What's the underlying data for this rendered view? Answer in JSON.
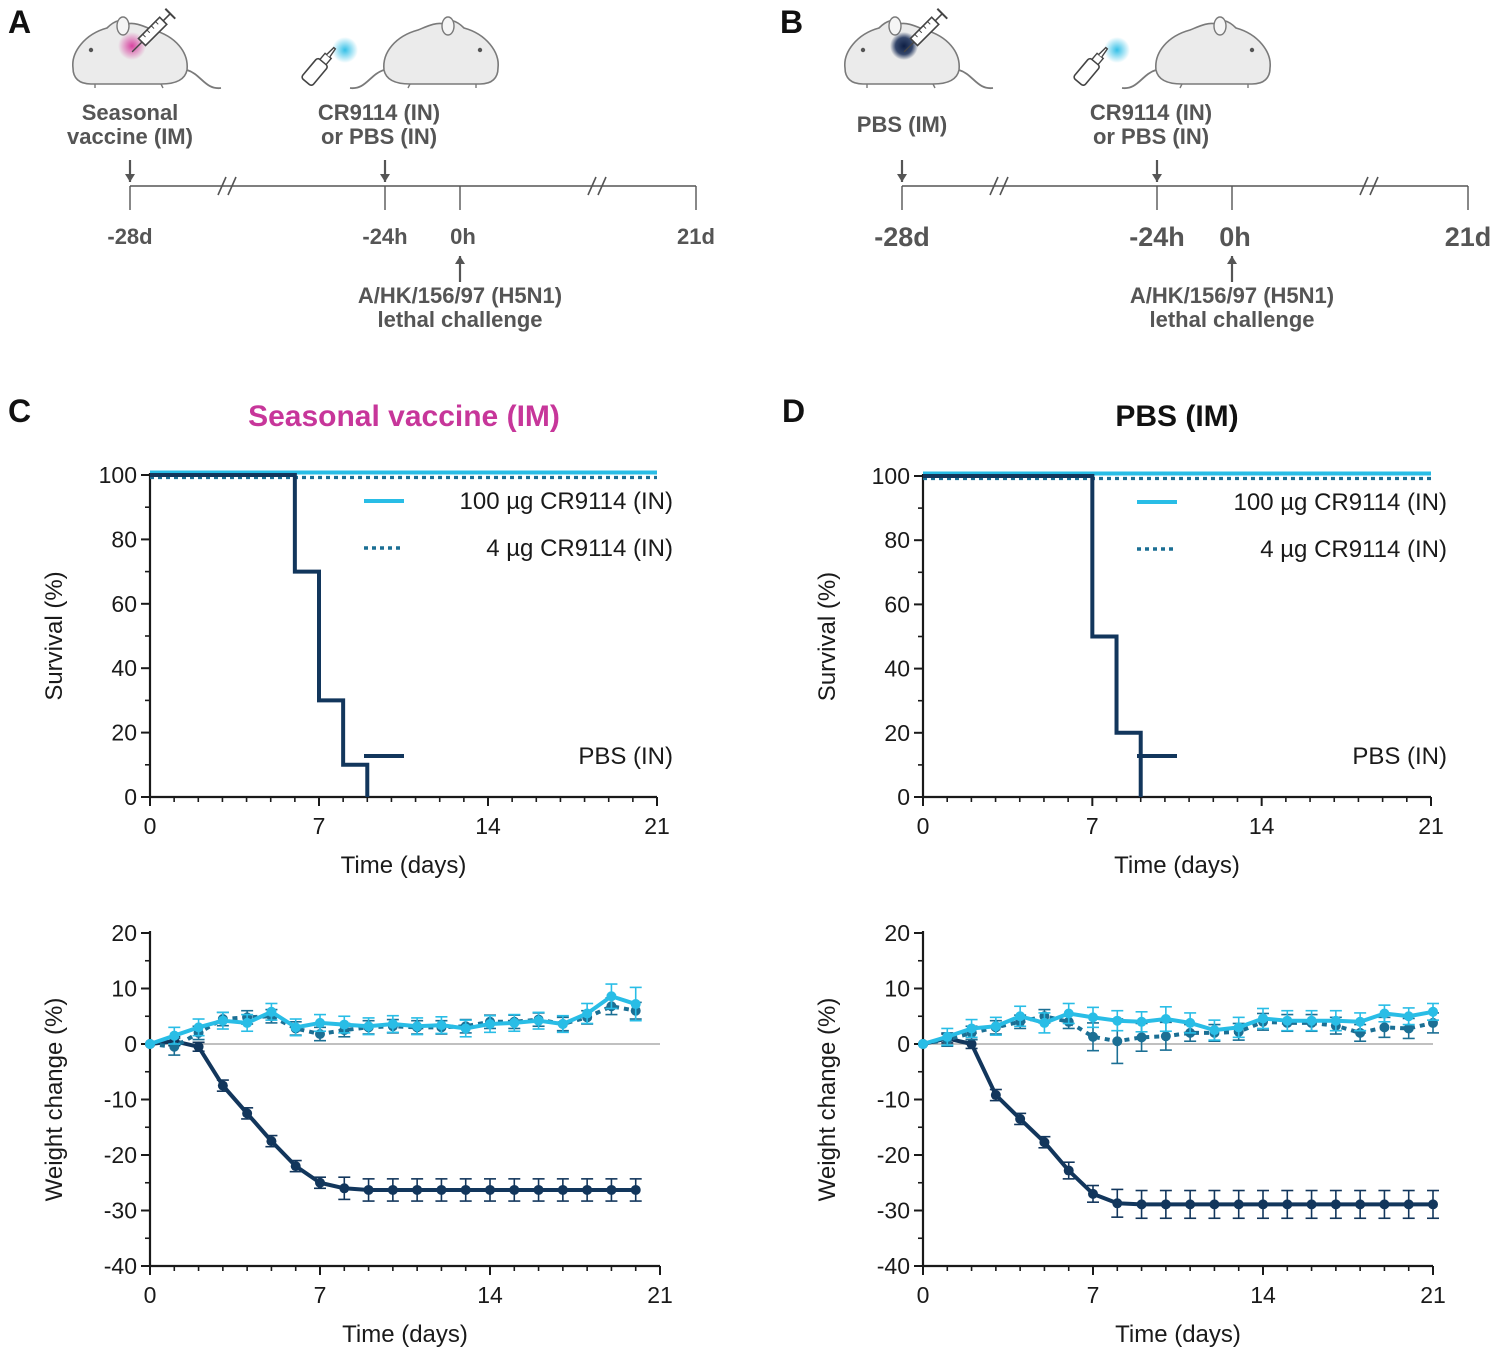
{
  "colors": {
    "light": "#29bde6",
    "mid": "#1b6f94",
    "dark": "#12365c",
    "title_magenta": "#c7369a",
    "title_black": "#111111",
    "timeline": "#555555"
  },
  "icons": [
    "mouse-icon",
    "syringe-icon",
    "nasal-spray-icon"
  ],
  "panels": [
    {
      "label": "A",
      "first_treatment": "Seasonal vaccine (IM)",
      "first_treatment_lines": [
        "Seasonal",
        "vaccine (IM)"
      ],
      "first_dot": "#d63a9c",
      "second_treatment_lines": [
        "CR9114 (IN)",
        "or PBS (IN)"
      ],
      "ticks": [
        "-28d",
        "-24h",
        "0h",
        "21d"
      ],
      "challenge_lines": [
        "A/HK/156/97 (H5N1)",
        "lethal challenge"
      ]
    },
    {
      "label": "B",
      "first_treatment": "PBS (IM)",
      "first_treatment_lines": [
        "PBS (IM)"
      ],
      "first_dot": "#152a55",
      "second_treatment_lines": [
        "CR9114 (IN)",
        "or PBS (IN)"
      ],
      "ticks": [
        "-28d",
        "-24h",
        "0h",
        "21d"
      ],
      "challenge_lines": [
        "A/HK/156/97 (H5N1)",
        "lethal challenge"
      ]
    }
  ],
  "chart_data": [
    {
      "panel": "C",
      "type": "line",
      "subtype": "survival-step",
      "title": "Seasonal vaccine (IM)",
      "xlabel": "Time (days)",
      "ylabel": "Survival (%)",
      "xlim": [
        0,
        21
      ],
      "ylim": [
        0,
        100
      ],
      "xticks": [
        0,
        7,
        14,
        21
      ],
      "yticks": [
        0,
        20,
        40,
        60,
        80,
        100
      ],
      "series": [
        {
          "name": "100 µg CR9114 (IN)",
          "style": "solid",
          "color": "light",
          "x": [
            0,
            21
          ],
          "y": [
            100,
            100
          ]
        },
        {
          "name": "4 µg CR9114 (IN)",
          "style": "dotted",
          "color": "mid",
          "x": [
            0,
            21
          ],
          "y": [
            100,
            100
          ]
        },
        {
          "name": "PBS (IN)",
          "style": "solid",
          "color": "dark",
          "x": [
            0,
            6,
            7,
            8,
            9
          ],
          "y": [
            100,
            70,
            30,
            10,
            0
          ]
        }
      ]
    },
    {
      "panel": "D",
      "type": "line",
      "subtype": "survival-step",
      "title": "PBS (IM)",
      "xlabel": "Time (days)",
      "ylabel": "Survival (%)",
      "xlim": [
        0,
        21
      ],
      "ylim": [
        0,
        100
      ],
      "xticks": [
        0,
        7,
        14,
        21
      ],
      "yticks": [
        0,
        20,
        40,
        60,
        80,
        100
      ],
      "series": [
        {
          "name": "100 µg CR9114 (IN)",
          "style": "solid",
          "color": "light",
          "x": [
            0,
            21
          ],
          "y": [
            100,
            100
          ]
        },
        {
          "name": "4 µg CR9114 (IN)",
          "style": "dotted",
          "color": "mid",
          "x": [
            0,
            21
          ],
          "y": [
            100,
            100
          ]
        },
        {
          "name": "PBS (IN)",
          "style": "solid",
          "color": "dark",
          "x": [
            0,
            7,
            8,
            9
          ],
          "y": [
            100,
            50,
            20,
            0
          ]
        }
      ]
    },
    {
      "panel": "C-weight",
      "type": "line",
      "subtype": "weight",
      "xlabel": "Time (days)",
      "ylabel": "Weight change (%)",
      "xlim": [
        0,
        21
      ],
      "ylim": [
        -40,
        20
      ],
      "xticks": [
        0,
        7,
        14,
        21
      ],
      "yticks": [
        -40,
        -30,
        -20,
        -10,
        0,
        10,
        20
      ],
      "x": [
        0,
        1,
        2,
        3,
        4,
        5,
        6,
        7,
        8,
        9,
        10,
        11,
        12,
        13,
        14,
        15,
        16,
        17,
        18,
        19,
        20,
        21
      ],
      "series": [
        {
          "name": "100 µg CR9114 (IN)",
          "style": "solid",
          "color": "light",
          "values": [
            0,
            1.5,
            3,
            4.2,
            3.8,
            5.8,
            3,
            3.8,
            3.5,
            3.2,
            3.6,
            3.2,
            3.4,
            2.8,
            3.6,
            3.8,
            4.2,
            3.6,
            5.5,
            8.6,
            7.2,
            null
          ],
          "errors": [
            0,
            1.5,
            1.5,
            1.5,
            1.5,
            1.5,
            1.5,
            1.5,
            1.5,
            1.5,
            1.5,
            1.5,
            1.5,
            1.5,
            1.5,
            1.5,
            1.5,
            1.5,
            1.8,
            2.2,
            3,
            0
          ]
        },
        {
          "name": "4 µg CR9114 (IN)",
          "style": "dotted",
          "color": "mid",
          "values": [
            0,
            -0.5,
            2,
            4.5,
            4.8,
            5,
            2.8,
            1.8,
            2.5,
            3,
            3.2,
            3,
            3,
            3.2,
            4,
            4,
            4.4,
            3.6,
            4.8,
            6.8,
            6,
            null
          ],
          "errors": [
            0,
            1.5,
            1.2,
            1.2,
            1.2,
            1.2,
            1.2,
            1.2,
            1.2,
            1.2,
            1.2,
            1.2,
            1.2,
            1.2,
            1.2,
            1.2,
            1.2,
            1.2,
            1.2,
            1.5,
            1.5,
            0
          ]
        },
        {
          "name": "PBS (IN)",
          "style": "solid",
          "color": "dark",
          "values": [
            0,
            0.5,
            -0.5,
            -7.5,
            -12.5,
            -17.5,
            -22,
            -25,
            -26,
            -26.3,
            -26.3,
            -26.3,
            -26.3,
            -26.3,
            -26.3,
            -26.3,
            -26.3,
            -26.3,
            -26.3,
            -26.3,
            -26.3,
            null
          ],
          "errors": [
            0,
            0.8,
            0.8,
            1,
            1,
            1,
            1,
            1,
            2,
            2,
            2,
            2,
            2,
            2,
            2,
            2,
            2,
            2,
            2,
            2,
            2,
            0
          ]
        }
      ]
    },
    {
      "panel": "D-weight",
      "type": "line",
      "subtype": "weight",
      "xlabel": "Time (days)",
      "ylabel": "Weight change (%)",
      "xlim": [
        0,
        21
      ],
      "ylim": [
        -40,
        20
      ],
      "xticks": [
        0,
        7,
        14,
        21
      ],
      "yticks": [
        -40,
        -30,
        -20,
        -10,
        0,
        10,
        20
      ],
      "x": [
        0,
        1,
        2,
        3,
        4,
        5,
        6,
        7,
        8,
        9,
        10,
        11,
        12,
        13,
        14,
        15,
        16,
        17,
        18,
        19,
        20,
        21
      ],
      "series": [
        {
          "name": "100 µg CR9114 (IN)",
          "style": "solid",
          "color": "light",
          "values": [
            0,
            1.3,
            2.8,
            3.2,
            5,
            3.8,
            5.5,
            4.8,
            4.2,
            4,
            4.5,
            3.8,
            2.5,
            3,
            4.6,
            4.2,
            4.2,
            4.2,
            4,
            5.5,
            5,
            5.8
          ],
          "errors": [
            0,
            1.5,
            1.6,
            1.6,
            1.8,
            1.8,
            1.8,
            1.8,
            1.8,
            1.8,
            2.2,
            1.8,
            1.8,
            1.8,
            1.8,
            1.8,
            1.8,
            1.8,
            1.6,
            1.5,
            1.5,
            1.5
          ]
        },
        {
          "name": "4 µg CR9114 (IN)",
          "style": "dotted",
          "color": "mid",
          "values": [
            0,
            0.8,
            2,
            3,
            4,
            5,
            4,
            1.3,
            0.5,
            1.2,
            1.4,
            2,
            2,
            2.2,
            4,
            3.8,
            3.8,
            3.3,
            2,
            3,
            2.8,
            3.8
          ],
          "errors": [
            0,
            1.2,
            1.2,
            1.2,
            1.2,
            1.2,
            1.2,
            2.5,
            4,
            2.5,
            2.5,
            1.5,
            1.5,
            1.5,
            1.5,
            1.5,
            1.5,
            1.5,
            1.5,
            1.8,
            1.8,
            1.8
          ]
        },
        {
          "name": "PBS (IN)",
          "style": "solid",
          "color": "dark",
          "values": [
            0,
            1,
            0,
            -9.2,
            -13.5,
            -17.7,
            -22.8,
            -27,
            -28.7,
            -28.9,
            -28.9,
            -28.9,
            -28.9,
            -28.9,
            -28.9,
            -28.9,
            -28.9,
            -28.9,
            -28.9,
            -28.9,
            -28.9,
            -28.9
          ],
          "errors": [
            0,
            0.8,
            0.8,
            1,
            1,
            1,
            1.5,
            1.5,
            2.5,
            2.5,
            2.5,
            2.5,
            2.5,
            2.5,
            2.5,
            2.5,
            2.5,
            2.5,
            2.5,
            2.5,
            2.5,
            2.5
          ]
        }
      ]
    }
  ]
}
